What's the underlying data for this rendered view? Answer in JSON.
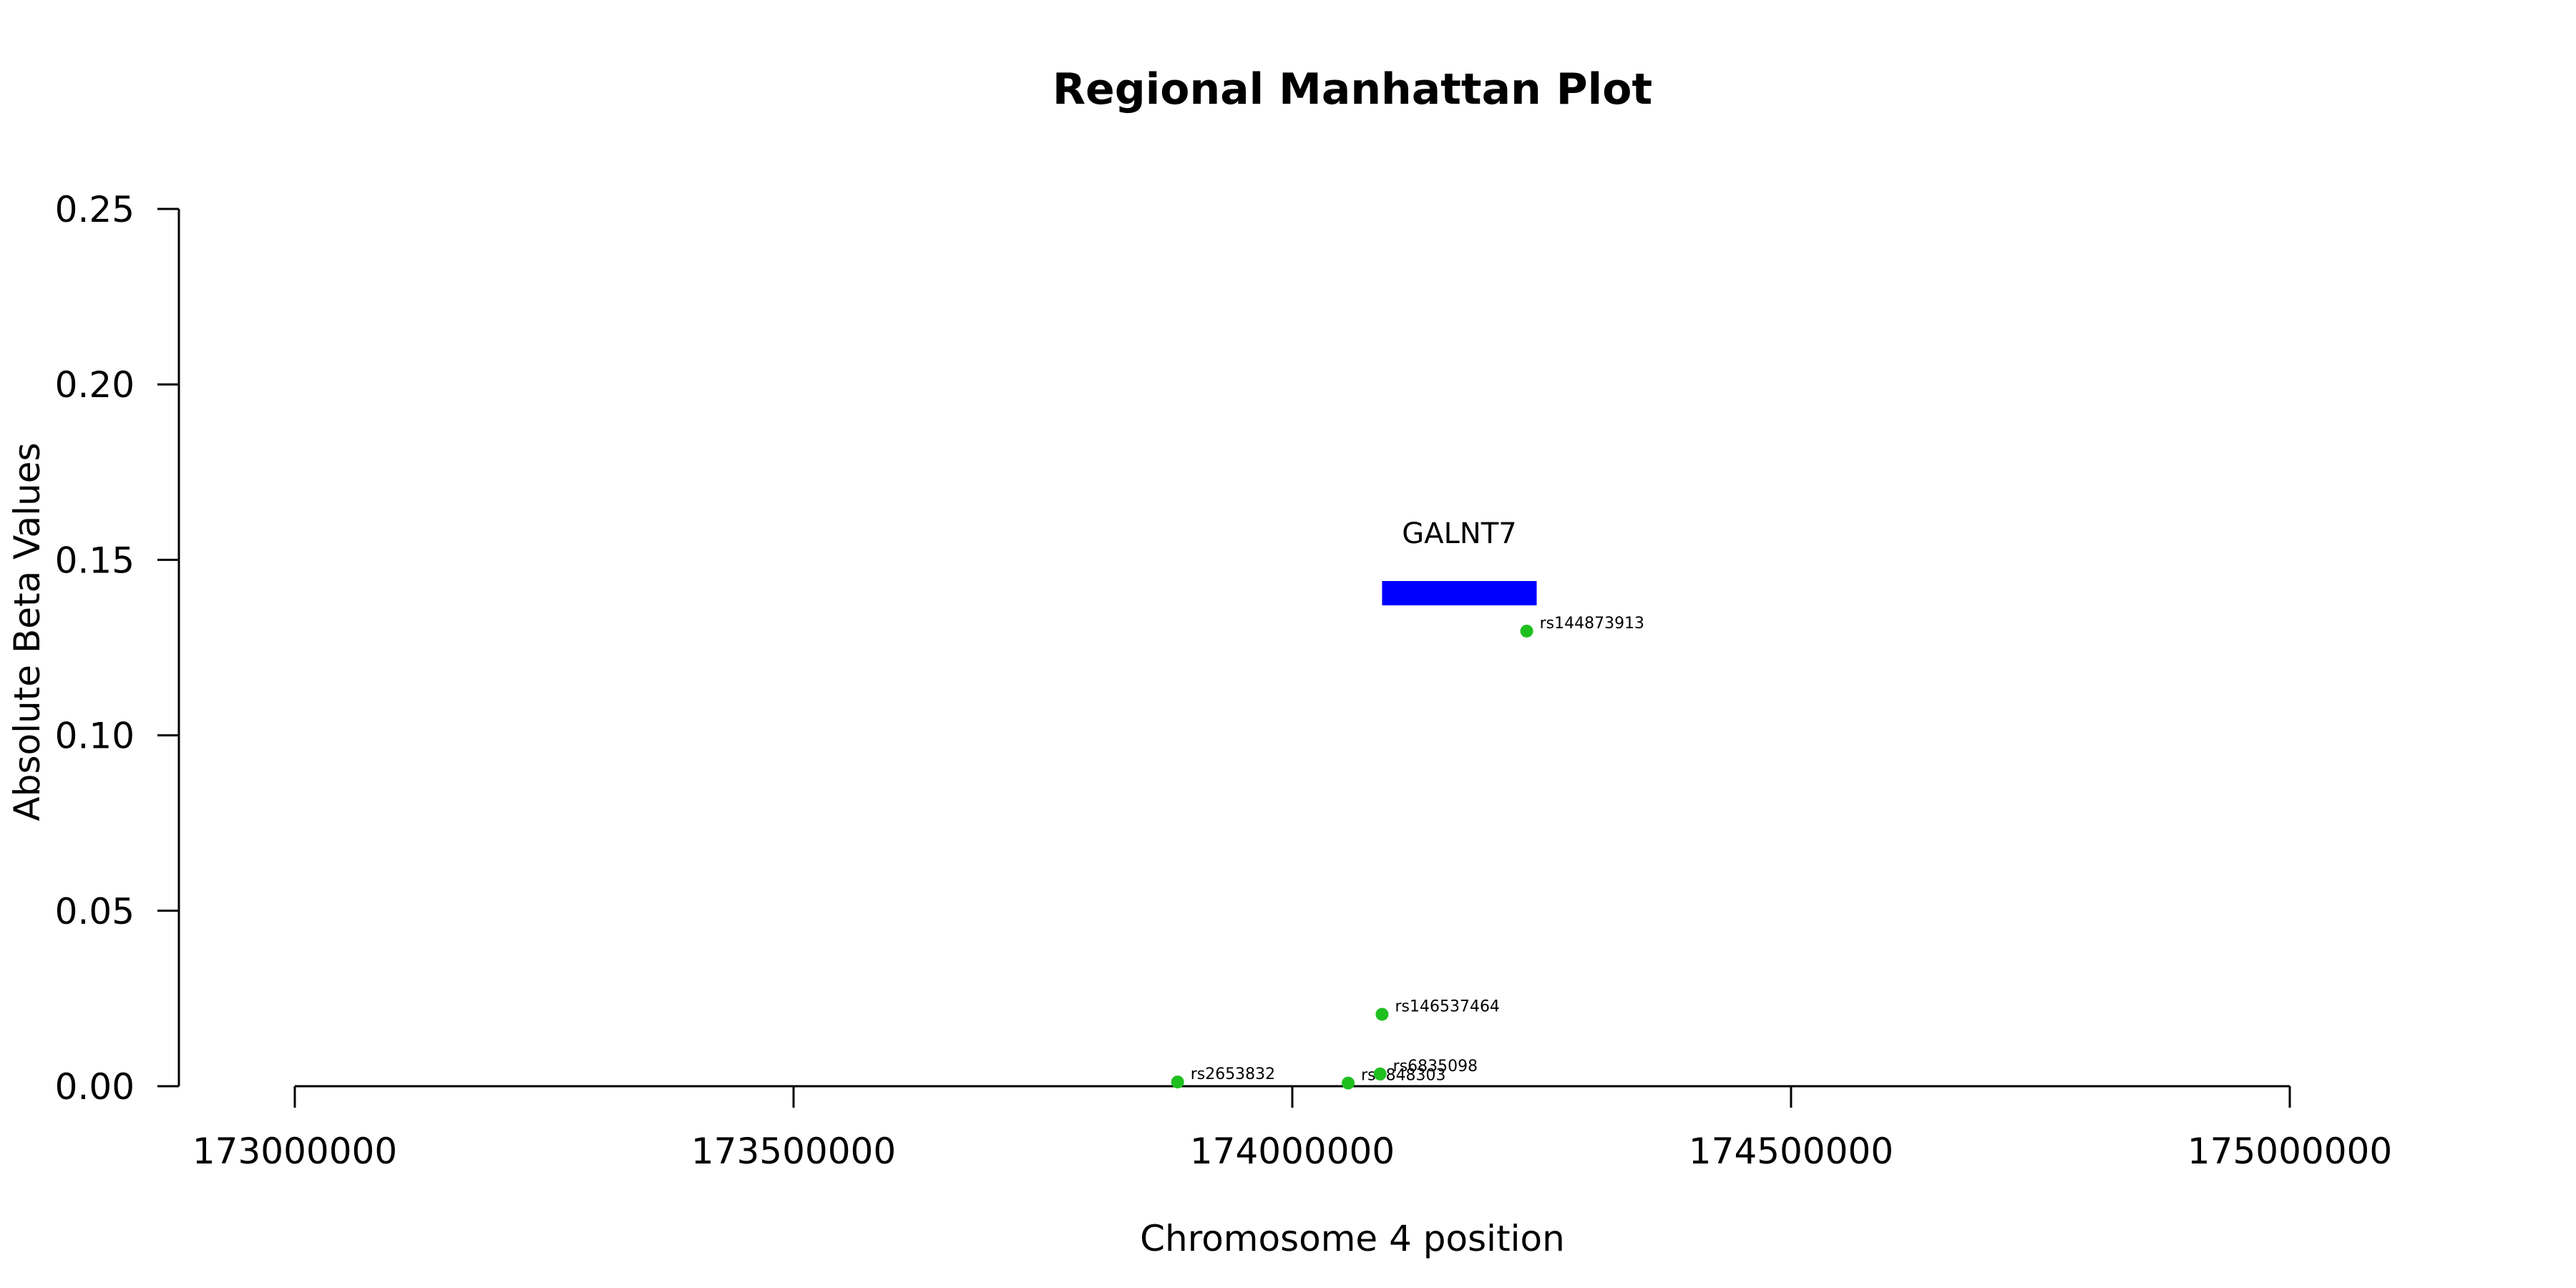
{
  "chart_data": {
    "type": "scatter",
    "title": "Regional Manhattan Plot",
    "xlabel": "Chromosome 4 position",
    "ylabel": "Absolute Beta Values",
    "xlim": [
      173000000,
      175000000
    ],
    "ylim": [
      0,
      0.25
    ],
    "x_ticks": [
      173000000,
      173500000,
      174000000,
      174500000,
      175000000
    ],
    "x_tick_labels": [
      "173000000",
      "173500000",
      "174000000",
      "174500000",
      "175000000"
    ],
    "y_ticks": [
      0,
      0.05,
      0.1,
      0.15,
      0.2,
      0.25
    ],
    "y_tick_labels": [
      "0.00",
      "0.05",
      "0.10",
      "0.15",
      "0.20",
      "0.25"
    ],
    "grid": false,
    "point_color": "#1fbf1f",
    "gene_color": "#0000ff",
    "points": [
      {
        "label": "rs2653832",
        "x": 173885000,
        "y": 0.0012
      },
      {
        "label": "rs6848303",
        "x": 174056000,
        "y": 0.0009
      },
      {
        "label": "rs6835098",
        "x": 174088000,
        "y": 0.0035
      },
      {
        "label": "rs146537464",
        "x": 174090000,
        "y": 0.0205
      },
      {
        "label": "rs144873913",
        "x": 174235000,
        "y": 0.1297
      }
    ],
    "genes": [
      {
        "name": "GALNT7",
        "start": 174090000,
        "end": 174245000,
        "y": 0.1405
      }
    ]
  }
}
